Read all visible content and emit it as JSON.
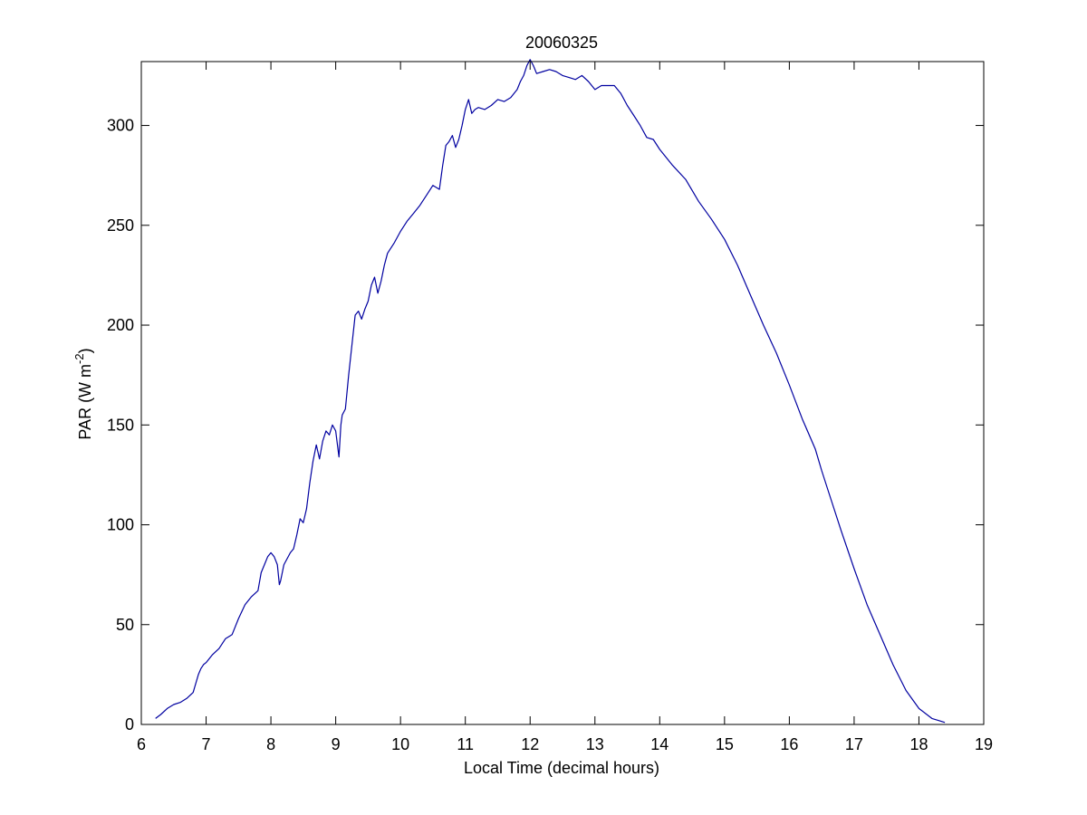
{
  "chart_data": {
    "type": "line",
    "title": "20060325",
    "xlabel": "Local Time (decimal hours)",
    "ylabel_main": "PAR (W m",
    "ylabel_sup": "-2",
    "ylabel_tail": ")",
    "xlim": [
      6,
      19
    ],
    "ylim": [
      0,
      332
    ],
    "xticks": [
      6,
      7,
      8,
      9,
      10,
      11,
      12,
      13,
      14,
      15,
      16,
      17,
      18,
      19
    ],
    "yticks": [
      0,
      50,
      100,
      150,
      200,
      250,
      300
    ],
    "grid": false,
    "legend": "none",
    "line_color": "#0000a0",
    "series": [
      {
        "x": [
          6.22,
          6.3,
          6.4,
          6.5,
          6.6,
          6.7,
          6.8,
          6.88,
          6.92,
          6.96,
          7.0,
          7.1,
          7.2,
          7.3,
          7.4,
          7.5,
          7.6,
          7.7,
          7.8,
          7.85,
          7.9,
          7.95,
          8.0,
          8.05,
          8.1,
          8.13,
          8.15,
          8.2,
          8.3,
          8.35,
          8.4,
          8.45,
          8.5,
          8.55,
          8.6,
          8.65,
          8.7,
          8.75,
          8.8,
          8.85,
          8.9,
          8.95,
          9.0,
          9.05,
          9.08,
          9.1,
          9.15,
          9.2,
          9.25,
          9.3,
          9.35,
          9.4,
          9.45,
          9.5,
          9.55,
          9.6,
          9.65,
          9.7,
          9.75,
          9.8,
          9.9,
          10.0,
          10.1,
          10.2,
          10.3,
          10.4,
          10.5,
          10.6,
          10.65,
          10.7,
          10.75,
          10.8,
          10.85,
          10.9,
          10.95,
          11.0,
          11.05,
          11.1,
          11.15,
          11.2,
          11.3,
          11.4,
          11.5,
          11.6,
          11.7,
          11.8,
          11.85,
          11.9,
          11.95,
          12.0,
          12.05,
          12.1,
          12.2,
          12.3,
          12.4,
          12.5,
          12.6,
          12.7,
          12.8,
          12.9,
          13.0,
          13.1,
          13.2,
          13.3,
          13.4,
          13.5,
          13.6,
          13.7,
          13.8,
          13.9,
          14.0,
          14.2,
          14.4,
          14.6,
          14.8,
          15.0,
          15.2,
          15.4,
          15.6,
          15.8,
          16.0,
          16.2,
          16.4,
          16.5,
          16.6,
          16.8,
          17.0,
          17.2,
          17.4,
          17.6,
          17.8,
          18.0,
          18.2,
          18.3,
          18.4
        ],
        "y": [
          3,
          5,
          8,
          10,
          11,
          13,
          16,
          25,
          28,
          30,
          31,
          35,
          38,
          43,
          45,
          53,
          60,
          64,
          67,
          76,
          80,
          84,
          86,
          84,
          80,
          70,
          72,
          80,
          86,
          88,
          95,
          103,
          101,
          108,
          121,
          132,
          140,
          133,
          142,
          147,
          145,
          150,
          147,
          134,
          150,
          155,
          158,
          175,
          190,
          205,
          207,
          203,
          208,
          212,
          220,
          224,
          216,
          222,
          230,
          236,
          241,
          247,
          252,
          256,
          260,
          265,
          270,
          268,
          280,
          290,
          292,
          295,
          289,
          293,
          300,
          308,
          313,
          306,
          308,
          309,
          308,
          310,
          313,
          312,
          314,
          318,
          322,
          325,
          330,
          333,
          330,
          326,
          327,
          328,
          327,
          325,
          324,
          323,
          325,
          322,
          318,
          320,
          320,
          320,
          316,
          310,
          305,
          300,
          294,
          293,
          288,
          280,
          273,
          262,
          253,
          243,
          230,
          215,
          200,
          186,
          170,
          153,
          138,
          127,
          117,
          97,
          78,
          60,
          45,
          30,
          17,
          8,
          3,
          2,
          1
        ]
      }
    ]
  }
}
